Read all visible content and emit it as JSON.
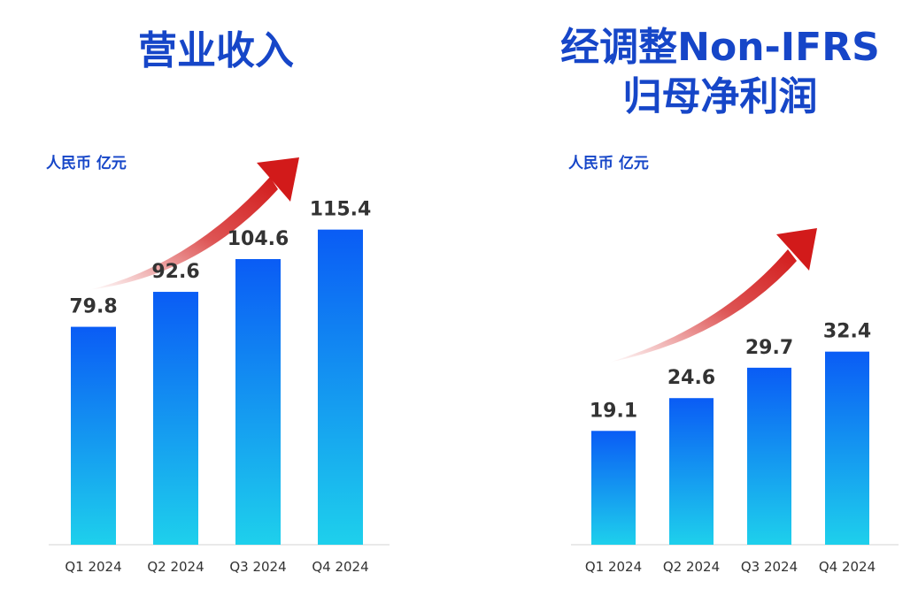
{
  "colors": {
    "title": "#1646c8",
    "bar_top": "#0a5cf5",
    "bar_bottom": "#1ed0ec",
    "arrow": "#d21a1a",
    "baseline": "#e2e2e2",
    "label": "#333333"
  },
  "chart_data": [
    {
      "type": "bar",
      "title": "营业收入",
      "unit": "人民币 亿元",
      "categories": [
        "Q1 2024",
        "Q2 2024",
        "Q3 2024",
        "Q4 2024"
      ],
      "values": [
        79.8,
        92.6,
        104.6,
        115.4
      ],
      "value_labels": [
        "79.8",
        "92.6",
        "104.6",
        "115.4"
      ],
      "ylim": [
        0,
        125
      ],
      "grid": false,
      "legend": "none"
    },
    {
      "type": "bar",
      "title": "经调整Non-IFRS\n归母净利润",
      "title_lines": [
        "经调整Non-IFRS",
        "归母净利润"
      ],
      "unit": "人民币 亿元",
      "categories": [
        "Q1 2024",
        "Q2 2024",
        "Q3 2024",
        "Q4 2024"
      ],
      "values": [
        19.1,
        24.6,
        29.7,
        32.4
      ],
      "value_labels": [
        "19.1",
        "24.6",
        "29.7",
        "32.4"
      ],
      "ylim": [
        0,
        46
      ],
      "grid": false,
      "legend": "none"
    }
  ]
}
